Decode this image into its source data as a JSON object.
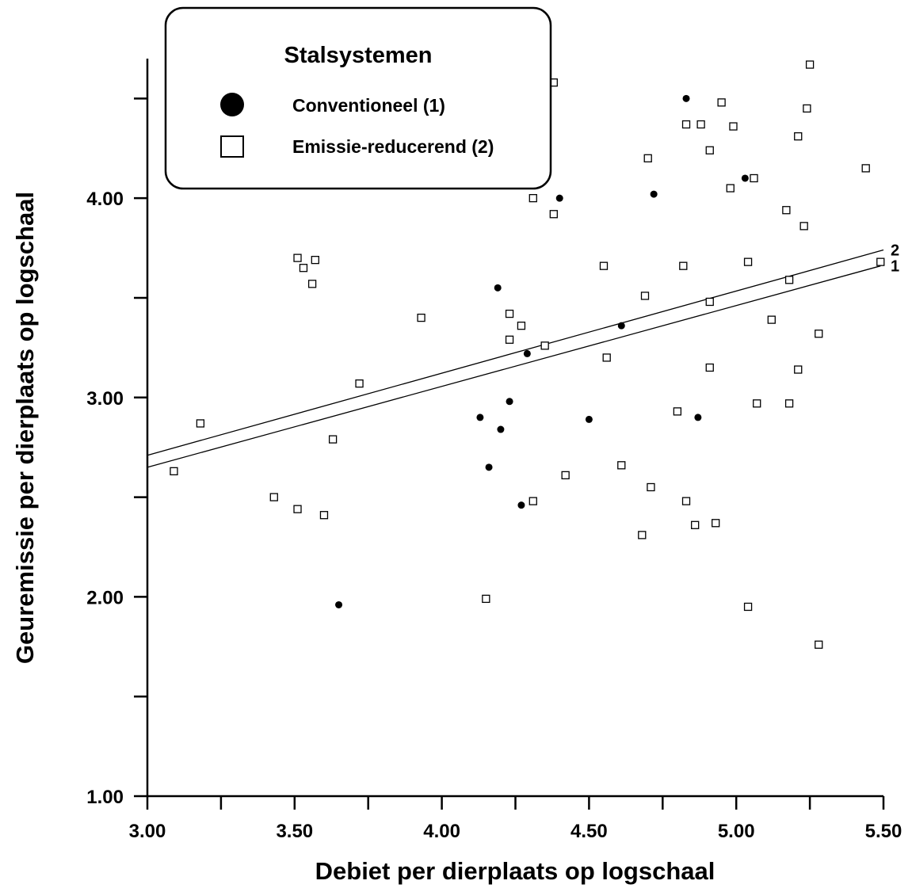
{
  "chart_data": {
    "type": "scatter",
    "title": "",
    "xlabel": "Debiet per dierplaats op logschaal",
    "ylabel": "Geuremissie per dierplaats op logschaal",
    "xlim": [
      3.0,
      5.5
    ],
    "ylim": [
      1.0,
      4.5
    ],
    "x_ticks": [
      3.0,
      3.25,
      3.5,
      3.75,
      4.0,
      4.25,
      4.5,
      4.75,
      5.0,
      5.25,
      5.5
    ],
    "x_tick_labels": [
      "3.00",
      "3.50",
      "4.00",
      "4.50",
      "5.00",
      "5.50"
    ],
    "x_tick_label_values": [
      3.0,
      3.5,
      4.0,
      4.5,
      5.0,
      5.5
    ],
    "y_ticks": [
      1.0,
      1.5,
      2.0,
      2.5,
      3.0,
      3.5,
      4.0,
      4.5
    ],
    "y_tick_labels": [
      "1.00",
      "2.00",
      "3.00",
      "4.00"
    ],
    "y_tick_label_values": [
      1.0,
      2.0,
      3.0,
      4.0
    ],
    "grid": false,
    "legend": {
      "title": "Stalsystemen",
      "placement": "top-left",
      "entries": [
        "Conventioneel (1)",
        "Emissie-reducerend (2)"
      ]
    },
    "series": [
      {
        "name": "Conventioneel (1)",
        "marker": "filled-circle",
        "points": [
          [
            3.65,
            1.96
          ],
          [
            4.13,
            2.9
          ],
          [
            4.16,
            2.65
          ],
          [
            4.19,
            3.55
          ],
          [
            4.2,
            2.84
          ],
          [
            4.23,
            2.98
          ],
          [
            4.27,
            2.46
          ],
          [
            4.29,
            3.22
          ],
          [
            4.4,
            4.0
          ],
          [
            4.5,
            2.89
          ],
          [
            4.61,
            3.36
          ],
          [
            4.72,
            4.02
          ],
          [
            4.83,
            4.5
          ],
          [
            4.87,
            2.9
          ],
          [
            5.03,
            4.1
          ]
        ]
      },
      {
        "name": "Emissie-reducerend (2)",
        "marker": "open-square",
        "points": [
          [
            3.09,
            2.63
          ],
          [
            3.18,
            2.87
          ],
          [
            3.43,
            2.5
          ],
          [
            3.51,
            3.7
          ],
          [
            3.51,
            2.44
          ],
          [
            3.53,
            3.65
          ],
          [
            3.56,
            3.57
          ],
          [
            3.57,
            3.69
          ],
          [
            3.6,
            2.41
          ],
          [
            3.63,
            2.79
          ],
          [
            3.72,
            3.07
          ],
          [
            3.93,
            3.4
          ],
          [
            4.15,
            1.99
          ],
          [
            4.23,
            3.42
          ],
          [
            4.23,
            3.29
          ],
          [
            4.27,
            3.36
          ],
          [
            4.31,
            4.0
          ],
          [
            4.31,
            2.48
          ],
          [
            4.35,
            3.26
          ],
          [
            4.38,
            4.58
          ],
          [
            4.38,
            3.92
          ],
          [
            4.42,
            2.61
          ],
          [
            4.55,
            3.66
          ],
          [
            4.56,
            3.2
          ],
          [
            4.61,
            2.66
          ],
          [
            4.68,
            2.31
          ],
          [
            4.69,
            3.51
          ],
          [
            4.7,
            4.2
          ],
          [
            4.71,
            2.55
          ],
          [
            4.8,
            2.93
          ],
          [
            4.82,
            3.66
          ],
          [
            4.83,
            4.37
          ],
          [
            4.83,
            2.48
          ],
          [
            4.86,
            2.36
          ],
          [
            4.88,
            4.37
          ],
          [
            4.91,
            4.24
          ],
          [
            4.91,
            3.48
          ],
          [
            4.91,
            3.15
          ],
          [
            4.93,
            2.37
          ],
          [
            4.95,
            4.48
          ],
          [
            4.98,
            4.05
          ],
          [
            4.99,
            4.36
          ],
          [
            5.04,
            3.68
          ],
          [
            5.04,
            1.95
          ],
          [
            5.06,
            4.1
          ],
          [
            5.07,
            2.97
          ],
          [
            5.12,
            3.39
          ],
          [
            5.17,
            3.94
          ],
          [
            5.18,
            3.59
          ],
          [
            5.18,
            2.97
          ],
          [
            5.21,
            4.31
          ],
          [
            5.21,
            3.14
          ],
          [
            5.23,
            3.86
          ],
          [
            5.24,
            4.45
          ],
          [
            5.25,
            4.67
          ],
          [
            5.28,
            3.32
          ],
          [
            5.28,
            1.76
          ],
          [
            5.44,
            4.15
          ],
          [
            5.49,
            3.68
          ]
        ]
      }
    ],
    "regression_lines": [
      {
        "label": "1",
        "x": [
          3.0,
          5.49
        ],
        "y": [
          2.65,
          3.66
        ]
      },
      {
        "label": "2",
        "x": [
          3.0,
          5.5
        ],
        "y": [
          2.71,
          3.74
        ]
      }
    ]
  }
}
